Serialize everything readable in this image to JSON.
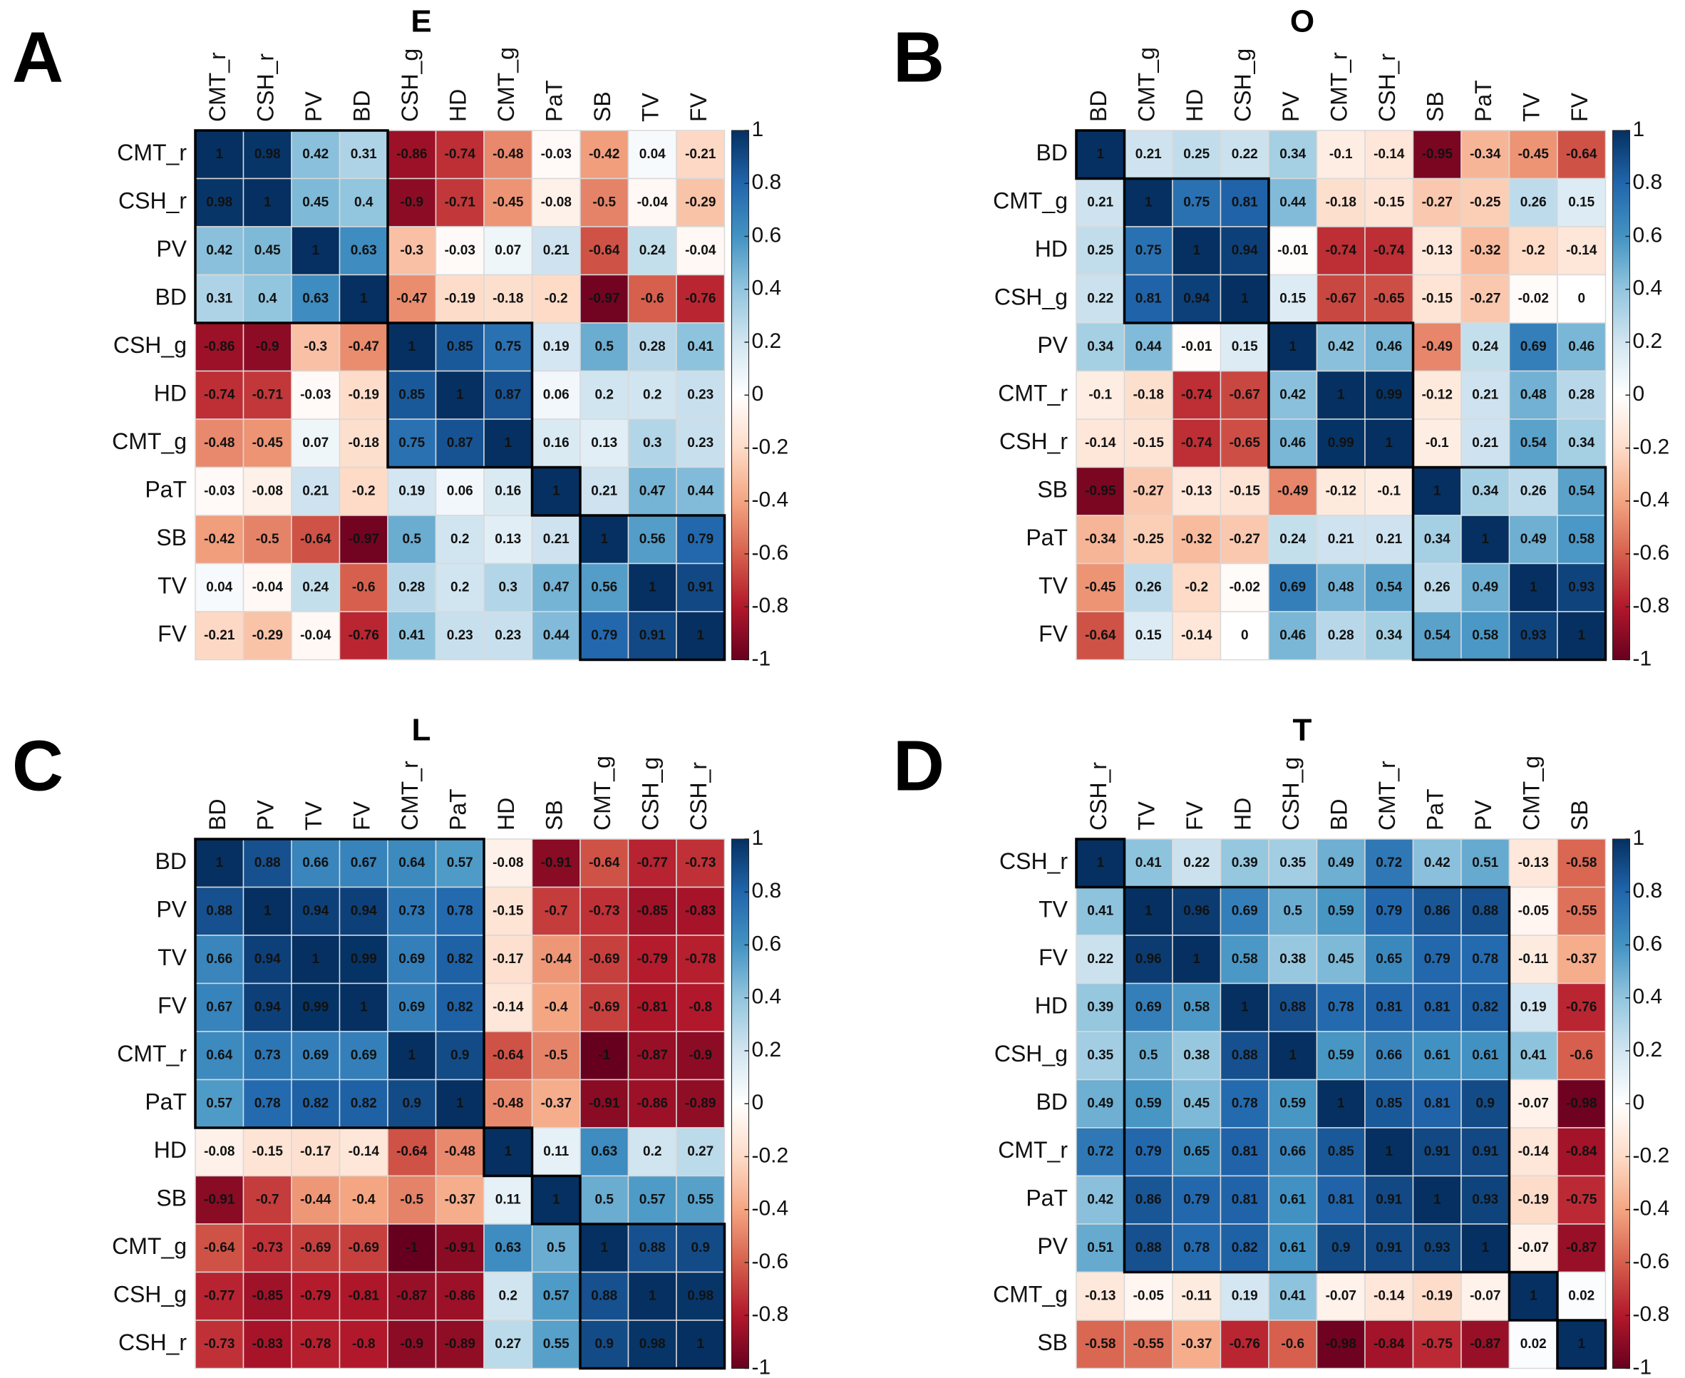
{
  "chart_data": [
    {
      "type": "heatmap",
      "panel_label": "A",
      "title": "E",
      "labels": [
        "CMT_r",
        "CSH_r",
        "PV",
        "BD",
        "CSH_g",
        "HD",
        "CMT_g",
        "PaT",
        "SB",
        "TV",
        "FV"
      ],
      "values": [
        [
          1,
          0.98,
          0.42,
          0.31,
          -0.86,
          -0.74,
          -0.48,
          -0.03,
          -0.42,
          0.04,
          -0.21
        ],
        [
          0.98,
          1,
          0.45,
          0.4,
          -0.9,
          -0.71,
          -0.45,
          -0.08,
          -0.5,
          -0.04,
          -0.29
        ],
        [
          0.42,
          0.45,
          1,
          0.63,
          -0.3,
          -0.03,
          0.07,
          0.21,
          -0.64,
          0.24,
          -0.04
        ],
        [
          0.31,
          0.4,
          0.63,
          1,
          -0.47,
          -0.19,
          -0.18,
          -0.2,
          -0.97,
          -0.6,
          -0.76
        ],
        [
          -0.86,
          -0.9,
          -0.3,
          -0.47,
          1,
          0.85,
          0.75,
          0.19,
          0.5,
          0.28,
          0.41
        ],
        [
          -0.74,
          -0.71,
          -0.03,
          -0.19,
          0.85,
          1,
          0.87,
          0.06,
          0.2,
          0.2,
          0.23
        ],
        [
          -0.48,
          -0.45,
          0.07,
          -0.18,
          0.75,
          0.87,
          1,
          0.16,
          0.13,
          0.3,
          0.23
        ],
        [
          -0.03,
          -0.08,
          0.21,
          -0.2,
          0.19,
          0.06,
          0.16,
          1,
          0.21,
          0.47,
          0.44
        ],
        [
          -0.42,
          -0.5,
          -0.64,
          -0.97,
          0.5,
          0.2,
          0.13,
          0.21,
          1,
          0.56,
          0.79
        ],
        [
          0.04,
          -0.04,
          0.24,
          -0.6,
          0.28,
          0.2,
          0.3,
          0.47,
          0.56,
          1,
          0.91
        ],
        [
          -0.21,
          -0.29,
          -0.04,
          -0.76,
          0.41,
          0.23,
          0.23,
          0.44,
          0.79,
          0.91,
          1
        ]
      ],
      "clusters": [
        4,
        3,
        1,
        3
      ],
      "zlim": [
        -1,
        1
      ],
      "zticks": [
        1,
        0.8,
        0.6,
        0.4,
        0.2,
        0,
        -0.2,
        -0.4,
        -0.6,
        -0.8,
        -1
      ],
      "colorscale": [
        "#67001F",
        "#B2182B",
        "#D6604D",
        "#F4A582",
        "#FDDBC7",
        "#FFFFFF",
        "#D1E5F0",
        "#92C5DE",
        "#4393C3",
        "#2166AC",
        "#053061"
      ]
    },
    {
      "type": "heatmap",
      "panel_label": "B",
      "title": "O",
      "labels": [
        "BD",
        "CMT_g",
        "HD",
        "CSH_g",
        "PV",
        "CMT_r",
        "CSH_r",
        "SB",
        "PaT",
        "TV",
        "FV"
      ],
      "values": [
        [
          1,
          0.21,
          0.25,
          0.22,
          0.34,
          -0.1,
          -0.14,
          -0.95,
          -0.34,
          -0.45,
          -0.64
        ],
        [
          0.21,
          1,
          0.75,
          0.81,
          0.44,
          -0.18,
          -0.15,
          -0.27,
          -0.25,
          0.26,
          0.15
        ],
        [
          0.25,
          0.75,
          1,
          0.94,
          -0.01,
          -0.74,
          -0.74,
          -0.13,
          -0.32,
          -0.2,
          -0.14
        ],
        [
          0.22,
          0.81,
          0.94,
          1,
          0.15,
          -0.67,
          -0.65,
          -0.15,
          -0.27,
          -0.02,
          0
        ],
        [
          0.34,
          0.44,
          -0.01,
          0.15,
          1,
          0.42,
          0.46,
          -0.49,
          0.24,
          0.69,
          0.46
        ],
        [
          -0.1,
          -0.18,
          -0.74,
          -0.67,
          0.42,
          1,
          0.99,
          -0.12,
          0.21,
          0.48,
          0.28
        ],
        [
          -0.14,
          -0.15,
          -0.74,
          -0.65,
          0.46,
          0.99,
          1,
          -0.1,
          0.21,
          0.54,
          0.34
        ],
        [
          -0.95,
          -0.27,
          -0.13,
          -0.15,
          -0.49,
          -0.12,
          -0.1,
          1,
          0.34,
          0.26,
          0.54
        ],
        [
          -0.34,
          -0.25,
          -0.32,
          -0.27,
          0.24,
          0.21,
          0.21,
          0.34,
          1,
          0.49,
          0.58
        ],
        [
          -0.45,
          0.26,
          -0.2,
          -0.02,
          0.69,
          0.48,
          0.54,
          0.26,
          0.49,
          1,
          0.93
        ],
        [
          -0.64,
          0.15,
          -0.14,
          0,
          0.46,
          0.28,
          0.34,
          0.54,
          0.58,
          0.93,
          1
        ]
      ],
      "clusters": [
        1,
        3,
        3,
        4
      ],
      "zlim": [
        -1,
        1
      ],
      "zticks": [
        1,
        0.8,
        0.6,
        0.4,
        0.2,
        0,
        -0.2,
        -0.4,
        -0.6,
        -0.8,
        -1
      ],
      "colorscale": [
        "#67001F",
        "#B2182B",
        "#D6604D",
        "#F4A582",
        "#FDDBC7",
        "#FFFFFF",
        "#D1E5F0",
        "#92C5DE",
        "#4393C3",
        "#2166AC",
        "#053061"
      ]
    },
    {
      "type": "heatmap",
      "panel_label": "C",
      "title": "L",
      "labels": [
        "BD",
        "PV",
        "TV",
        "FV",
        "CMT_r",
        "PaT",
        "HD",
        "SB",
        "CMT_g",
        "CSH_g",
        "CSH_r"
      ],
      "values": [
        [
          1,
          0.88,
          0.66,
          0.67,
          0.64,
          0.57,
          -0.08,
          -0.91,
          -0.64,
          -0.77,
          -0.73
        ],
        [
          0.88,
          1,
          0.94,
          0.94,
          0.73,
          0.78,
          -0.15,
          -0.7,
          -0.73,
          -0.85,
          -0.83
        ],
        [
          0.66,
          0.94,
          1,
          0.99,
          0.69,
          0.82,
          -0.17,
          -0.44,
          -0.69,
          -0.79,
          -0.78
        ],
        [
          0.67,
          0.94,
          0.99,
          1,
          0.69,
          0.82,
          -0.14,
          -0.4,
          -0.69,
          -0.81,
          -0.8
        ],
        [
          0.64,
          0.73,
          0.69,
          0.69,
          1,
          0.9,
          -0.64,
          -0.5,
          -1,
          -0.87,
          -0.9
        ],
        [
          0.57,
          0.78,
          0.82,
          0.82,
          0.9,
          1,
          -0.48,
          -0.37,
          -0.91,
          -0.86,
          -0.89
        ],
        [
          -0.08,
          -0.15,
          -0.17,
          -0.14,
          -0.64,
          -0.48,
          1,
          0.11,
          0.63,
          0.2,
          0.27
        ],
        [
          -0.91,
          -0.7,
          -0.44,
          -0.4,
          -0.5,
          -0.37,
          0.11,
          1,
          0.5,
          0.57,
          0.55
        ],
        [
          -0.64,
          -0.73,
          -0.69,
          -0.69,
          -1,
          -0.91,
          0.63,
          0.5,
          1,
          0.88,
          0.9
        ],
        [
          -0.77,
          -0.85,
          -0.79,
          -0.81,
          -0.87,
          -0.86,
          0.2,
          0.57,
          0.88,
          1,
          0.98
        ],
        [
          -0.73,
          -0.83,
          -0.78,
          -0.8,
          -0.9,
          -0.89,
          0.27,
          0.55,
          0.9,
          0.98,
          1
        ]
      ],
      "clusters": [
        6,
        1,
        1,
        3
      ],
      "zlim": [
        -1,
        1
      ],
      "zticks": [
        1,
        0.8,
        0.6,
        0.4,
        0.2,
        0,
        -0.2,
        -0.4,
        -0.6,
        -0.8,
        -1
      ],
      "colorscale": [
        "#67001F",
        "#B2182B",
        "#D6604D",
        "#F4A582",
        "#FDDBC7",
        "#FFFFFF",
        "#D1E5F0",
        "#92C5DE",
        "#4393C3",
        "#2166AC",
        "#053061"
      ]
    },
    {
      "type": "heatmap",
      "panel_label": "D",
      "title": "T",
      "labels": [
        "CSH_r",
        "TV",
        "FV",
        "HD",
        "CSH_g",
        "BD",
        "CMT_r",
        "PaT",
        "PV",
        "CMT_g",
        "SB"
      ],
      "values": [
        [
          1,
          0.41,
          0.22,
          0.39,
          0.35,
          0.49,
          0.72,
          0.42,
          0.51,
          -0.13,
          -0.58
        ],
        [
          0.41,
          1,
          0.96,
          0.69,
          0.5,
          0.59,
          0.79,
          0.86,
          0.88,
          -0.05,
          -0.55
        ],
        [
          0.22,
          0.96,
          1,
          0.58,
          0.38,
          0.45,
          0.65,
          0.79,
          0.78,
          -0.11,
          -0.37
        ],
        [
          0.39,
          0.69,
          0.58,
          1,
          0.88,
          0.78,
          0.81,
          0.81,
          0.82,
          0.19,
          -0.76
        ],
        [
          0.35,
          0.5,
          0.38,
          0.88,
          1,
          0.59,
          0.66,
          0.61,
          0.61,
          0.41,
          -0.6
        ],
        [
          0.49,
          0.59,
          0.45,
          0.78,
          0.59,
          1,
          0.85,
          0.81,
          0.9,
          -0.07,
          -0.98
        ],
        [
          0.72,
          0.79,
          0.65,
          0.81,
          0.66,
          0.85,
          1,
          0.91,
          0.91,
          -0.14,
          -0.84
        ],
        [
          0.42,
          0.86,
          0.79,
          0.81,
          0.61,
          0.81,
          0.91,
          1,
          0.93,
          -0.19,
          -0.75
        ],
        [
          0.51,
          0.88,
          0.78,
          0.82,
          0.61,
          0.9,
          0.91,
          0.93,
          1,
          -0.07,
          -0.87
        ],
        [
          -0.13,
          -0.05,
          -0.11,
          0.19,
          0.41,
          -0.07,
          -0.14,
          -0.19,
          -0.07,
          1,
          0.02
        ],
        [
          -0.58,
          -0.55,
          -0.37,
          -0.76,
          -0.6,
          -0.98,
          -0.84,
          -0.75,
          -0.87,
          0.02,
          1
        ]
      ],
      "clusters": [
        1,
        8,
        1,
        1
      ],
      "zlim": [
        -1,
        1
      ],
      "zticks": [
        1,
        0.8,
        0.6,
        0.4,
        0.2,
        0,
        -0.2,
        -0.4,
        -0.6,
        -0.8,
        -1
      ],
      "colorscale": [
        "#67001F",
        "#B2182B",
        "#D6604D",
        "#F4A582",
        "#FDDBC7",
        "#FFFFFF",
        "#D1E5F0",
        "#92C5DE",
        "#4393C3",
        "#2166AC",
        "#053061"
      ]
    }
  ]
}
